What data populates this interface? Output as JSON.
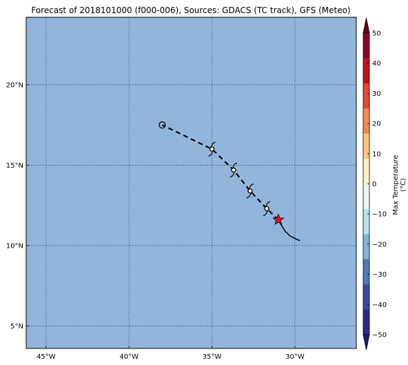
{
  "title": "Forecast of 2018101000 (f000-006), Sources: GDACS (TC track), GFS (Meteo)",
  "map": {
    "lon_range": [
      -46.2,
      -26.3
    ],
    "lat_range": [
      3.6,
      24.2
    ],
    "lon_ticks": [
      {
        "value": -45,
        "label": "45°W"
      },
      {
        "value": -40,
        "label": "40°W"
      },
      {
        "value": -35,
        "label": "35°W"
      },
      {
        "value": -30,
        "label": "30°W"
      }
    ],
    "lat_ticks": [
      {
        "value": 5,
        "label": "5°N"
      },
      {
        "value": 10,
        "label": "10°N"
      },
      {
        "value": 15,
        "label": "15°N"
      },
      {
        "value": 20,
        "label": "20°N"
      }
    ],
    "ocean_color": "#92b5da",
    "grid": true
  },
  "track": {
    "observed": [
      [
        -29.7,
        10.3
      ],
      [
        -30.3,
        10.6
      ],
      [
        -30.6,
        10.9
      ],
      [
        -30.9,
        11.4
      ],
      [
        -31.0,
        11.6
      ]
    ],
    "forecast": [
      [
        -31.0,
        11.6
      ],
      [
        -31.7,
        12.3
      ],
      [
        -32.7,
        13.4
      ],
      [
        -33.7,
        14.7
      ],
      [
        -35.0,
        16.0
      ],
      [
        -38.0,
        17.5
      ]
    ],
    "current_position": [
      -31.0,
      11.6
    ],
    "current_marker_color": "#e8101a",
    "cyclone_symbols": [
      [
        -31.7,
        12.3
      ],
      [
        -32.7,
        13.4
      ],
      [
        -33.7,
        14.7
      ],
      [
        -35.0,
        16.0
      ]
    ],
    "low_marker": [
      -38.0,
      17.5
    ]
  },
  "colorbar": {
    "label": "Max Temperature (°C)",
    "ticks": [
      "50",
      "40",
      "30",
      "20",
      "10",
      "0",
      "−10",
      "−20",
      "−30",
      "−40",
      "−50"
    ],
    "colors": [
      "#8a0026",
      "#c1121f",
      "#e34a33",
      "#f68a53",
      "#fdc47e",
      "#fef0bf",
      "#e8f6f5",
      "#b8e2ef",
      "#7fb7d7",
      "#4a7eb8",
      "#3a4ca0",
      "#2a2a8c"
    ],
    "over_color": "#6a0018",
    "under_color": "#1a1a80"
  }
}
